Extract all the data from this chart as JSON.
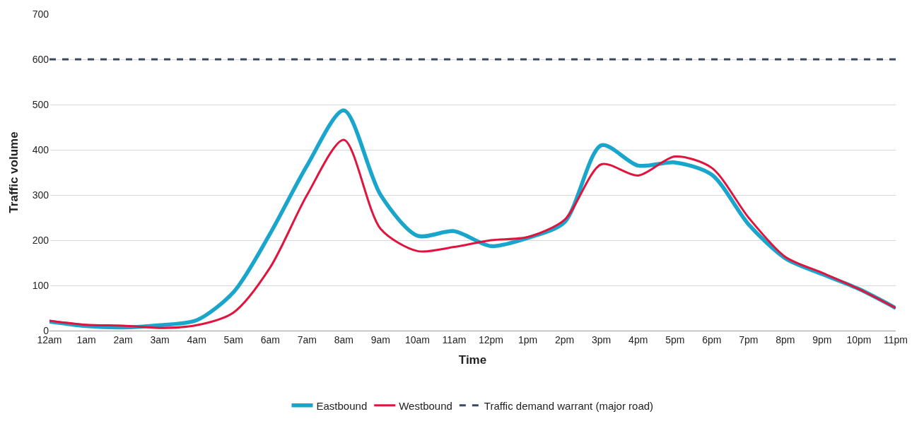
{
  "chart_data": {
    "type": "line",
    "xlabel": "Time",
    "ylabel": "Traffic volume",
    "categories": [
      "12am",
      "1am",
      "2am",
      "3am",
      "4am",
      "5am",
      "6am",
      "7am",
      "8am",
      "9am",
      "10am",
      "11am",
      "12pm",
      "1pm",
      "2pm",
      "3pm",
      "4pm",
      "5pm",
      "6pm",
      "7pm",
      "8pm",
      "9pm",
      "10pm",
      "11pm"
    ],
    "series": [
      {
        "name": "Eastbound",
        "color": "#1aa6cc",
        "values": [
          20,
          10,
          7,
          12,
          23,
          85,
          215,
          365,
          487,
          300,
          210,
          220,
          187,
          205,
          240,
          410,
          365,
          372,
          345,
          235,
          160,
          125,
          92,
          50
        ]
      },
      {
        "name": "Westbound",
        "color": "#e0143c",
        "values": [
          22,
          13,
          11,
          6,
          12,
          40,
          140,
          300,
          422,
          225,
          176,
          185,
          200,
          207,
          245,
          368,
          343,
          385,
          360,
          250,
          163,
          128,
          92,
          50
        ]
      }
    ],
    "ref_lines": [
      {
        "axis": "y",
        "value": 600,
        "label": "Traffic demand warrant (major road)",
        "color": "#3a4a5e",
        "line_style": "dashed"
      }
    ],
    "ylim": [
      0,
      700
    ],
    "yticks": [
      0,
      100,
      200,
      300,
      400,
      500,
      600,
      700
    ],
    "grid": "y",
    "legend": "bottom",
    "marker": "none",
    "line_style": "solid"
  }
}
